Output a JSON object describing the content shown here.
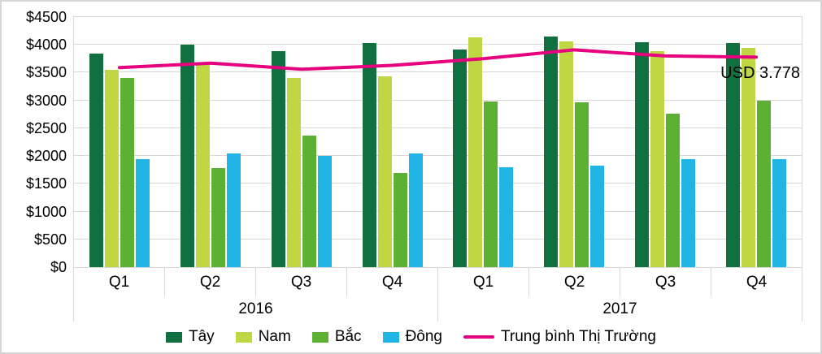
{
  "chart_data": {
    "type": "bar",
    "title": "",
    "xlabel": "",
    "ylabel": "",
    "ylim": [
      0,
      4500
    ],
    "ytick_step": 500,
    "ytick_labels": [
      "$0",
      "$500",
      "$1000",
      "$1500",
      "$2000",
      "$2500",
      "$3000",
      "$3500",
      "$4000",
      "$4500"
    ],
    "grid": true,
    "legend_position": "bottom",
    "categories_quarters": [
      "Q1",
      "Q2",
      "Q3",
      "Q4",
      "Q1",
      "Q2",
      "Q3",
      "Q4"
    ],
    "categories_years": [
      {
        "label": "2016",
        "span": 4
      },
      {
        "label": "2017",
        "span": 4
      }
    ],
    "series": [
      {
        "name": "Tây",
        "slug": "tay",
        "color": "#11703F",
        "values": [
          3850,
          4000,
          3890,
          4030,
          3920,
          4150,
          4050,
          4040
        ]
      },
      {
        "name": "Nam",
        "slug": "nam",
        "color": "#C0D643",
        "values": [
          3550,
          3650,
          3400,
          3430,
          4130,
          4060,
          3890,
          3950
        ]
      },
      {
        "name": "Bắc",
        "slug": "bac",
        "color": "#5CB033",
        "values": [
          3400,
          1780,
          2360,
          1700,
          2980,
          2960,
          2760,
          3000
        ]
      },
      {
        "name": "Đông",
        "slug": "dong",
        "color": "#1FB5E4",
        "values": [
          1940,
          2040,
          2000,
          2040,
          1800,
          1830,
          1950,
          1950
        ]
      }
    ],
    "line_series": {
      "name": "Trung bình Thị Trường",
      "slug": "trung-binh-thi-truong",
      "color": "#E6007E",
      "values": [
        3590,
        3670,
        3560,
        3630,
        3750,
        3910,
        3800,
        3778
      ]
    },
    "annotation": "USD 3.778"
  }
}
